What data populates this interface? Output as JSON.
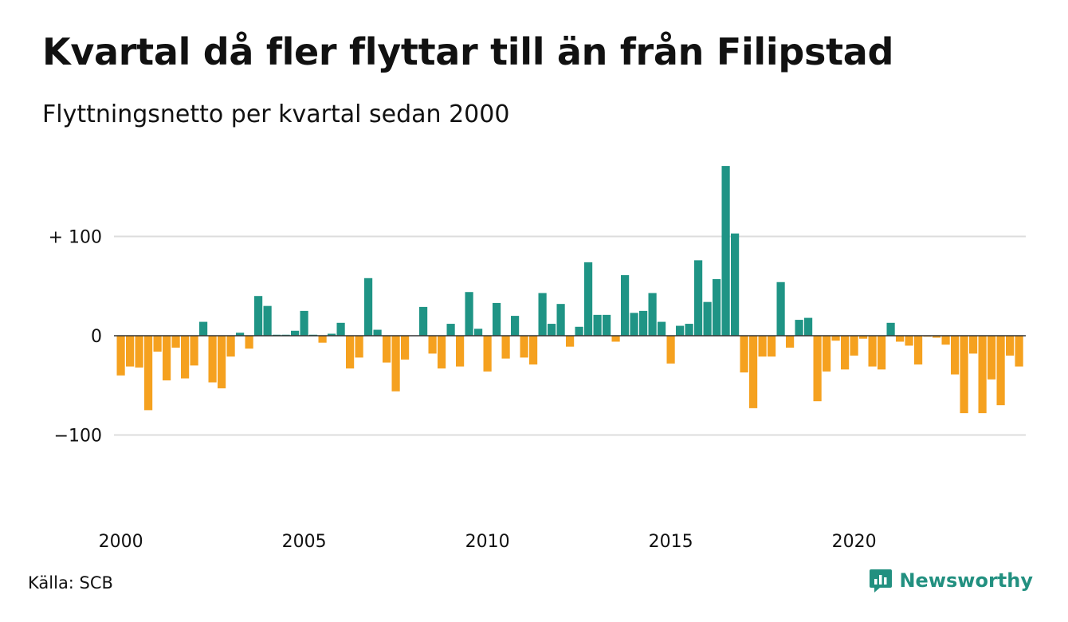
{
  "title": "Kvartal då fler flyttar till än från Filipstad",
  "subtitle": "Flyttningsnetto per kvartal sedan 2000",
  "source": "Källa: SCB",
  "brand": {
    "name": "Newsworthy",
    "icon": "bar-chart-speech-bubble-icon",
    "color": "#229080"
  },
  "colors": {
    "positive": "#1f9485",
    "negative": "#f5a11f",
    "grid": "#dddddd",
    "zero_line": "#333333"
  },
  "chart_data": {
    "type": "bar",
    "x_start": "2000 Q1",
    "x_end": "2024 Q3",
    "x_ticks": [
      {
        "label": "2000",
        "year": 2000
      },
      {
        "label": "2005",
        "year": 2005
      },
      {
        "label": "2010",
        "year": 2010
      },
      {
        "label": "2015",
        "year": 2015
      },
      {
        "label": "2020",
        "year": 2020
      }
    ],
    "y_ticks": [
      {
        "label": "+ 100",
        "value": 100
      },
      {
        "label": "0",
        "value": 0
      },
      {
        "label": "−100",
        "value": -100
      }
    ],
    "ylim": [
      -190,
      175
    ],
    "grid": true,
    "values": [
      -40,
      -31,
      -32,
      -75,
      -16,
      -45,
      -12,
      -43,
      -30,
      14,
      -47,
      -53,
      -21,
      3,
      -13,
      40,
      30,
      1,
      1,
      5,
      25,
      1,
      -7,
      2,
      13,
      -33,
      -22,
      58,
      6,
      -27,
      -56,
      -24,
      0,
      29,
      -18,
      -33,
      12,
      -31,
      44,
      7,
      -36,
      33,
      -23,
      20,
      -22,
      -29,
      43,
      12,
      32,
      -11,
      9,
      74,
      21,
      21,
      -6,
      61,
      23,
      25,
      43,
      14,
      -28,
      10,
      12,
      76,
      34,
      57,
      171,
      103,
      -37,
      -73,
      -21,
      -21,
      54,
      -12,
      16,
      18,
      -66,
      -36,
      -5,
      -34,
      -20,
      -3,
      -31,
      -34,
      13,
      -6,
      -10,
      -29,
      -1,
      -2,
      -9,
      -39,
      -78,
      -18,
      -78,
      -44,
      -70,
      -20,
      -31
    ]
  }
}
